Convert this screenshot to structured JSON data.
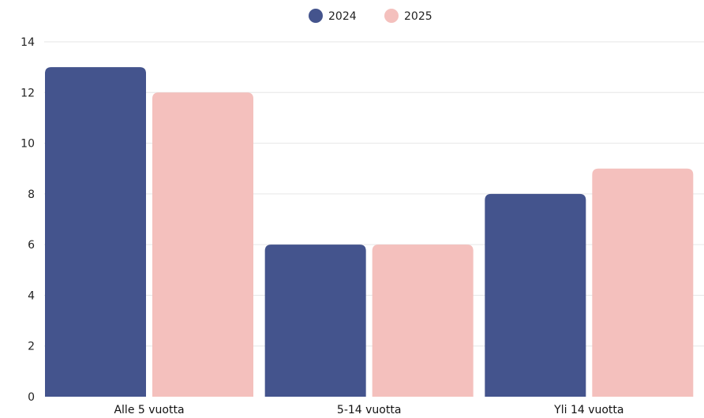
{
  "chart_data": {
    "type": "bar",
    "categories": [
      "Alle 5 vuotta",
      "5-14 vuotta",
      "Yli 14 vuotta"
    ],
    "series": [
      {
        "name": "2024",
        "values": [
          13,
          6,
          8
        ],
        "color": "#44548d"
      },
      {
        "name": "2025",
        "values": [
          12,
          6,
          9
        ],
        "color": "#f4c0bd"
      }
    ],
    "ylim": [
      0,
      14
    ],
    "yticks": [
      0,
      2,
      4,
      6,
      8,
      10,
      12,
      14
    ],
    "grid": true,
    "legend": "top-center"
  }
}
